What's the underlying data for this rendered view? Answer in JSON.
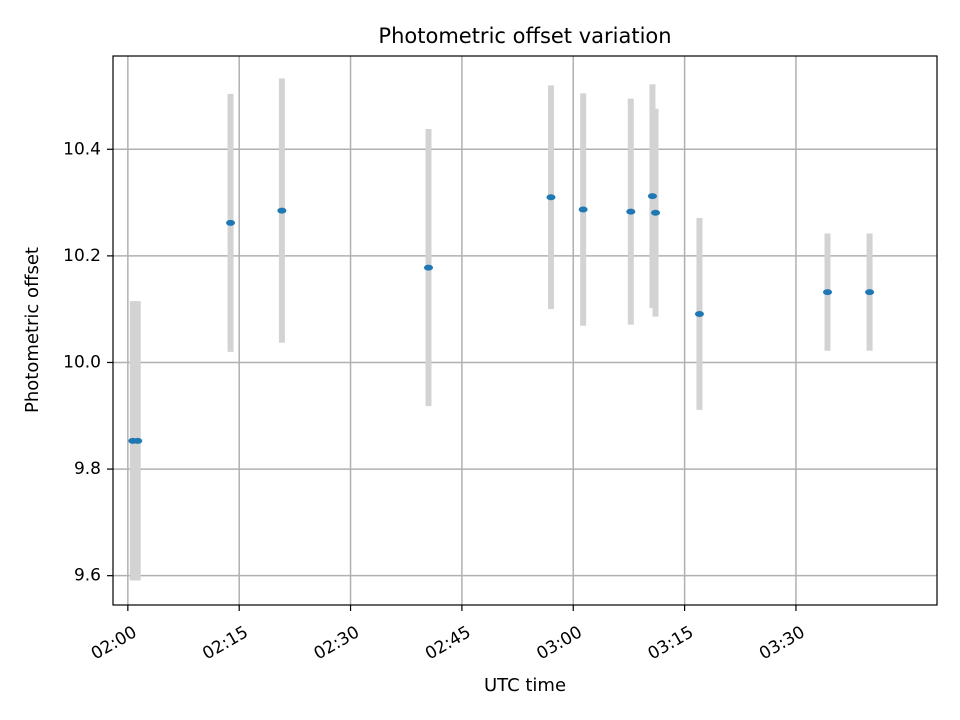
{
  "chart_data": {
    "type": "scatter",
    "title": "Photometric offset variation",
    "xlabel": "UTC time",
    "ylabel": "Photometric offset",
    "x_unit": "UTC time (HH:MM)",
    "xlim": [
      "01:58",
      "03:49"
    ],
    "ylim": [
      9.545,
      10.575
    ],
    "xticks": [
      "02:00",
      "02:15",
      "02:30",
      "02:45",
      "03:00",
      "03:15",
      "03:30"
    ],
    "yticks": [
      9.6,
      9.8,
      10.0,
      10.2,
      10.4
    ],
    "ytick_labels": [
      "9.6",
      "9.8",
      "10.0",
      "10.2",
      "10.4"
    ],
    "grid": true,
    "legend": "none",
    "colors": {
      "point": "#1f77b4",
      "errorbar": "#d3d3d3",
      "grid": "#b0b0b0"
    },
    "points": [
      {
        "x": "02:00:40",
        "y": 9.853,
        "err": 0.262
      },
      {
        "x": "02:01:20",
        "y": 9.853,
        "err": 0.262
      },
      {
        "x": "02:13:50",
        "y": 10.262,
        "err": 0.242
      },
      {
        "x": "02:20:45",
        "y": 10.285,
        "err": 0.248
      },
      {
        "x": "02:40:30",
        "y": 10.178,
        "err": 0.26
      },
      {
        "x": "02:57:00",
        "y": 10.31,
        "err": 0.21
      },
      {
        "x": "03:01:20",
        "y": 10.287,
        "err": 0.218
      },
      {
        "x": "03:07:45",
        "y": 10.283,
        "err": 0.212
      },
      {
        "x": "03:10:40",
        "y": 10.312,
        "err": 0.21
      },
      {
        "x": "03:11:05",
        "y": 10.281,
        "err": 0.195
      },
      {
        "x": "03:17:00",
        "y": 10.091,
        "err": 0.18
      },
      {
        "x": "03:34:15",
        "y": 10.132,
        "err": 0.11
      },
      {
        "x": "03:39:55",
        "y": 10.132,
        "err": 0.11
      }
    ]
  }
}
